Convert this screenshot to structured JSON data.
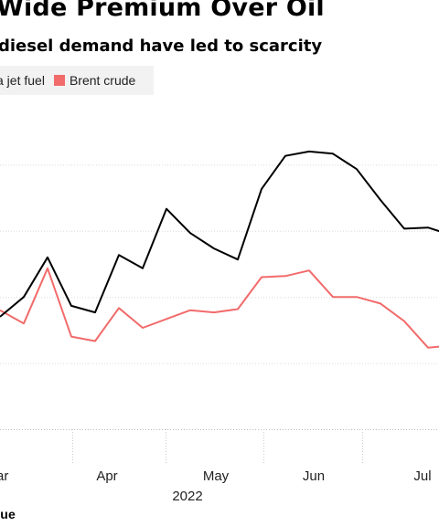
{
  "title": "Wide Premium Over Oil",
  "subtitle": "diesel demand have led to scarcity",
  "source": "lue",
  "chart_data": {
    "type": "line",
    "legend": {
      "placement": "top-left"
    },
    "grid": true,
    "x_tick_labels": [
      "ar",
      "Apr",
      "May",
      "Jun",
      "Jul"
    ],
    "x_year_label": "2022",
    "series": [
      {
        "name": "a jet fuel",
        "color": "#000000",
        "values": [
          51,
          60,
          78,
          56,
          53,
          79,
          73,
          100,
          89,
          82,
          77,
          109,
          124,
          126,
          125,
          118,
          104,
          91,
          91.5,
          88
        ]
      },
      {
        "name": "Brent crude",
        "color": "#f26b6b",
        "values": [
          54,
          48,
          73,
          42,
          40,
          55,
          46,
          50,
          54,
          53,
          54.5,
          69,
          69.5,
          72,
          60,
          60,
          57,
          49,
          37,
          38
        ]
      }
    ],
    "ylim": [
      0,
      150
    ]
  }
}
